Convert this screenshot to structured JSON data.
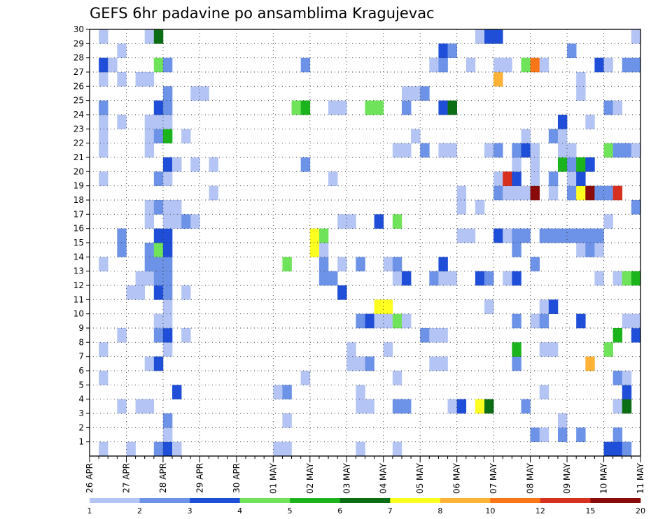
{
  "chart_data": {
    "type": "heatmap",
    "title": "GEFS 6hr padavine po ansamblima Kragujevac",
    "xlabel": "",
    "ylabel": "",
    "x_tick_labels": [
      "26 APR",
      "27 APR",
      "28 APR",
      "29 APR",
      "30 APR",
      "01 MAY",
      "02 MAY",
      "03 MAY",
      "04 MAY",
      "05 MAY",
      "06 MAY",
      "07 MAY",
      "08 MAY",
      "09 MAY",
      "10 MAY",
      "11 MAY"
    ],
    "y_tick_labels": [
      "1",
      "2",
      "3",
      "4",
      "5",
      "6",
      "7",
      "8",
      "9",
      "10",
      "11",
      "12",
      "13",
      "14",
      "15",
      "16",
      "17",
      "18",
      "19",
      "20",
      "21",
      "22",
      "23",
      "24",
      "25",
      "26",
      "27",
      "28",
      "29",
      "30"
    ],
    "steps_per_day": 4,
    "x_steps": 60,
    "members": 30,
    "grid": true,
    "colorbar": {
      "position": "bottom",
      "labels": [
        "1",
        "2",
        "3",
        "4",
        "5",
        "6",
        "7",
        "8",
        "10",
        "12",
        "15",
        "20"
      ],
      "colors": [
        "#b4c5f5",
        "#6d93e8",
        "#1f4fd8",
        "#6fe35a",
        "#1cb41c",
        "#0b6e14",
        "#ffff20",
        "#ffb336",
        "#fa7418",
        "#d8301e",
        "#8a0a0a"
      ]
    },
    "cells": [
      [
        1,
        1,
        0
      ],
      [
        1,
        4,
        0
      ],
      [
        1,
        7,
        1
      ],
      [
        1,
        8,
        2
      ],
      [
        1,
        9,
        0
      ],
      [
        1,
        20,
        0
      ],
      [
        1,
        21,
        0
      ],
      [
        1,
        29,
        0
      ],
      [
        1,
        33,
        0
      ],
      [
        1,
        56,
        2
      ],
      [
        1,
        57,
        2
      ],
      [
        1,
        58,
        1
      ],
      [
        2,
        8,
        0
      ],
      [
        2,
        48,
        1
      ],
      [
        2,
        49,
        0
      ],
      [
        2,
        51,
        1
      ],
      [
        2,
        53,
        1
      ],
      [
        2,
        57,
        1
      ],
      [
        3,
        8,
        1
      ],
      [
        3,
        21,
        0
      ],
      [
        3,
        51,
        0
      ],
      [
        4,
        3,
        0
      ],
      [
        4,
        5,
        0
      ],
      [
        4,
        6,
        0
      ],
      [
        4,
        29,
        0
      ],
      [
        4,
        30,
        0
      ],
      [
        4,
        33,
        1
      ],
      [
        4,
        34,
        1
      ],
      [
        4,
        39,
        0
      ],
      [
        4,
        40,
        2
      ],
      [
        4,
        42,
        6
      ],
      [
        4,
        43,
        5
      ],
      [
        4,
        47,
        1
      ],
      [
        4,
        57,
        0
      ],
      [
        4,
        58,
        5
      ],
      [
        5,
        9,
        2
      ],
      [
        5,
        20,
        0
      ],
      [
        5,
        21,
        1
      ],
      [
        5,
        29,
        0
      ],
      [
        5,
        49,
        0
      ],
      [
        5,
        58,
        2
      ],
      [
        6,
        1,
        0
      ],
      [
        6,
        23,
        0
      ],
      [
        6,
        33,
        0
      ],
      [
        6,
        57,
        1
      ],
      [
        6,
        58,
        0
      ],
      [
        7,
        6,
        0
      ],
      [
        7,
        7,
        2
      ],
      [
        7,
        28,
        0
      ],
      [
        7,
        29,
        0
      ],
      [
        7,
        30,
        1
      ],
      [
        7,
        37,
        0
      ],
      [
        7,
        38,
        0
      ],
      [
        7,
        46,
        1
      ],
      [
        7,
        54,
        7
      ],
      [
        8,
        1,
        0
      ],
      [
        8,
        8,
        0
      ],
      [
        8,
        28,
        0
      ],
      [
        8,
        32,
        0
      ],
      [
        8,
        46,
        4
      ],
      [
        8,
        49,
        0
      ],
      [
        8,
        50,
        0
      ],
      [
        8,
        56,
        3
      ],
      [
        9,
        3,
        0
      ],
      [
        9,
        7,
        1
      ],
      [
        9,
        8,
        2
      ],
      [
        9,
        10,
        0
      ],
      [
        9,
        36,
        1
      ],
      [
        9,
        37,
        0
      ],
      [
        9,
        38,
        0
      ],
      [
        9,
        57,
        4
      ],
      [
        9,
        59,
        2
      ],
      [
        10,
        7,
        0
      ],
      [
        10,
        8,
        0
      ],
      [
        10,
        29,
        1
      ],
      [
        10,
        30,
        2
      ],
      [
        10,
        31,
        0
      ],
      [
        10,
        32,
        0
      ],
      [
        10,
        33,
        3
      ],
      [
        10,
        34,
        0
      ],
      [
        10,
        46,
        1
      ],
      [
        10,
        48,
        0
      ],
      [
        10,
        49,
        1
      ],
      [
        10,
        53,
        2
      ],
      [
        10,
        58,
        0
      ],
      [
        10,
        59,
        0
      ],
      [
        11,
        8,
        0
      ],
      [
        11,
        31,
        6
      ],
      [
        11,
        32,
        6
      ],
      [
        11,
        43,
        0
      ],
      [
        11,
        49,
        0
      ],
      [
        11,
        50,
        2
      ],
      [
        12,
        4,
        0
      ],
      [
        12,
        5,
        0
      ],
      [
        12,
        7,
        2
      ],
      [
        12,
        8,
        1
      ],
      [
        12,
        10,
        0
      ],
      [
        12,
        27,
        2
      ],
      [
        13,
        5,
        0
      ],
      [
        13,
        6,
        0
      ],
      [
        13,
        7,
        1
      ],
      [
        13,
        8,
        1
      ],
      [
        13,
        25,
        1
      ],
      [
        13,
        26,
        1
      ],
      [
        13,
        33,
        0
      ],
      [
        13,
        34,
        2
      ],
      [
        13,
        37,
        1
      ],
      [
        13,
        38,
        0
      ],
      [
        13,
        39,
        0
      ],
      [
        13,
        42,
        2
      ],
      [
        13,
        43,
        1
      ],
      [
        13,
        45,
        0
      ],
      [
        13,
        46,
        2
      ],
      [
        13,
        55,
        0
      ],
      [
        13,
        57,
        0
      ],
      [
        13,
        58,
        3
      ],
      [
        13,
        59,
        4
      ],
      [
        14,
        1,
        0
      ],
      [
        14,
        6,
        1
      ],
      [
        14,
        7,
        1
      ],
      [
        14,
        8,
        1
      ],
      [
        14,
        21,
        3
      ],
      [
        14,
        25,
        1
      ],
      [
        14,
        27,
        0
      ],
      [
        14,
        29,
        1
      ],
      [
        14,
        32,
        0
      ],
      [
        14,
        33,
        1
      ],
      [
        14,
        38,
        2
      ],
      [
        14,
        48,
        1
      ],
      [
        15,
        3,
        1
      ],
      [
        15,
        6,
        1
      ],
      [
        15,
        7,
        3
      ],
      [
        15,
        8,
        2
      ],
      [
        15,
        24,
        6
      ],
      [
        15,
        25,
        0
      ],
      [
        15,
        46,
        1
      ],
      [
        15,
        53,
        0
      ],
      [
        15,
        54,
        1
      ],
      [
        15,
        55,
        0
      ],
      [
        16,
        3,
        1
      ],
      [
        16,
        7,
        2
      ],
      [
        16,
        8,
        2
      ],
      [
        16,
        24,
        6
      ],
      [
        16,
        25,
        3
      ],
      [
        16,
        40,
        0
      ],
      [
        16,
        41,
        0
      ],
      [
        16,
        44,
        2
      ],
      [
        16,
        45,
        0
      ],
      [
        16,
        46,
        1
      ],
      [
        16,
        47,
        1
      ],
      [
        16,
        49,
        1
      ],
      [
        16,
        50,
        1
      ],
      [
        16,
        51,
        1
      ],
      [
        16,
        52,
        1
      ],
      [
        16,
        53,
        1
      ],
      [
        16,
        54,
        1
      ],
      [
        16,
        55,
        1
      ],
      [
        17,
        6,
        0
      ],
      [
        17,
        8,
        0
      ],
      [
        17,
        9,
        0
      ],
      [
        17,
        10,
        1
      ],
      [
        17,
        11,
        0
      ],
      [
        17,
        27,
        0
      ],
      [
        17,
        28,
        0
      ],
      [
        17,
        31,
        2
      ],
      [
        17,
        33,
        3
      ],
      [
        17,
        56,
        0
      ],
      [
        18,
        6,
        0
      ],
      [
        18,
        7,
        1
      ],
      [
        18,
        8,
        0
      ],
      [
        18,
        9,
        0
      ],
      [
        18,
        40,
        0
      ],
      [
        18,
        42,
        0
      ],
      [
        18,
        59,
        1
      ],
      [
        19,
        13,
        0
      ],
      [
        19,
        40,
        0
      ],
      [
        19,
        44,
        1
      ],
      [
        19,
        45,
        0
      ],
      [
        19,
        46,
        0
      ],
      [
        19,
        47,
        0
      ],
      [
        19,
        48,
        10
      ],
      [
        19,
        50,
        0
      ],
      [
        19,
        52,
        1
      ],
      [
        19,
        53,
        6
      ],
      [
        19,
        54,
        10
      ],
      [
        19,
        55,
        1
      ],
      [
        19,
        56,
        1
      ],
      [
        19,
        57,
        9
      ],
      [
        20,
        1,
        0
      ],
      [
        20,
        7,
        1
      ],
      [
        20,
        8,
        0
      ],
      [
        20,
        26,
        0
      ],
      [
        20,
        44,
        0
      ],
      [
        20,
        45,
        9
      ],
      [
        20,
        46,
        2
      ],
      [
        20,
        48,
        0
      ],
      [
        20,
        50,
        1
      ],
      [
        20,
        52,
        0
      ],
      [
        20,
        53,
        2
      ],
      [
        21,
        8,
        2
      ],
      [
        21,
        9,
        0
      ],
      [
        21,
        11,
        0
      ],
      [
        21,
        13,
        0
      ],
      [
        21,
        23,
        1
      ],
      [
        21,
        46,
        0
      ],
      [
        21,
        48,
        0
      ],
      [
        21,
        51,
        4
      ],
      [
        21,
        52,
        1
      ],
      [
        21,
        53,
        4
      ],
      [
        21,
        54,
        2
      ],
      [
        22,
        1,
        0
      ],
      [
        22,
        6,
        0
      ],
      [
        22,
        33,
        0
      ],
      [
        22,
        34,
        0
      ],
      [
        22,
        36,
        1
      ],
      [
        22,
        38,
        0
      ],
      [
        22,
        39,
        0
      ],
      [
        22,
        43,
        0
      ],
      [
        22,
        44,
        1
      ],
      [
        22,
        46,
        1
      ],
      [
        22,
        47,
        2
      ],
      [
        22,
        48,
        0
      ],
      [
        22,
        51,
        0
      ],
      [
        22,
        52,
        0
      ],
      [
        22,
        56,
        3
      ],
      [
        22,
        57,
        1
      ],
      [
        22,
        58,
        1
      ],
      [
        22,
        59,
        0
      ],
      [
        23,
        1,
        0
      ],
      [
        23,
        6,
        0
      ],
      [
        23,
        7,
        1
      ],
      [
        23,
        8,
        4
      ],
      [
        23,
        10,
        0
      ],
      [
        23,
        35,
        0
      ],
      [
        23,
        47,
        0
      ],
      [
        23,
        50,
        1
      ],
      [
        23,
        51,
        0
      ],
      [
        24,
        1,
        0
      ],
      [
        24,
        3,
        0
      ],
      [
        24,
        6,
        0
      ],
      [
        24,
        7,
        0
      ],
      [
        24,
        8,
        0
      ],
      [
        24,
        51,
        2
      ],
      [
        24,
        54,
        0
      ],
      [
        25,
        1,
        1
      ],
      [
        25,
        7,
        2
      ],
      [
        25,
        8,
        1
      ],
      [
        25,
        22,
        3
      ],
      [
        25,
        23,
        4
      ],
      [
        25,
        26,
        0
      ],
      [
        25,
        27,
        0
      ],
      [
        25,
        30,
        3
      ],
      [
        25,
        31,
        3
      ],
      [
        25,
        34,
        1
      ],
      [
        25,
        38,
        2
      ],
      [
        25,
        39,
        5
      ],
      [
        25,
        56,
        1
      ],
      [
        25,
        57,
        0
      ],
      [
        26,
        8,
        1
      ],
      [
        26,
        11,
        0
      ],
      [
        26,
        12,
        0
      ],
      [
        26,
        34,
        0
      ],
      [
        26,
        35,
        0
      ],
      [
        26,
        36,
        1
      ],
      [
        26,
        53,
        0
      ],
      [
        27,
        1,
        0
      ],
      [
        27,
        3,
        0
      ],
      [
        27,
        5,
        0
      ],
      [
        27,
        6,
        0
      ],
      [
        27,
        44,
        7
      ],
      [
        27,
        53,
        0
      ],
      [
        28,
        1,
        2
      ],
      [
        28,
        2,
        0
      ],
      [
        28,
        7,
        3
      ],
      [
        28,
        8,
        1
      ],
      [
        28,
        23,
        1
      ],
      [
        28,
        37,
        0
      ],
      [
        28,
        38,
        1
      ],
      [
        28,
        41,
        0
      ],
      [
        28,
        44,
        0
      ],
      [
        28,
        45,
        0
      ],
      [
        28,
        47,
        3
      ],
      [
        28,
        48,
        8
      ],
      [
        28,
        49,
        0
      ],
      [
        28,
        55,
        2
      ],
      [
        28,
        56,
        0
      ],
      [
        28,
        58,
        1
      ],
      [
        28,
        59,
        1
      ],
      [
        29,
        3,
        0
      ],
      [
        29,
        38,
        2
      ],
      [
        29,
        39,
        1
      ],
      [
        29,
        52,
        1
      ],
      [
        30,
        1,
        0
      ],
      [
        30,
        6,
        0
      ],
      [
        30,
        7,
        5
      ],
      [
        30,
        42,
        0
      ],
      [
        30,
        43,
        2
      ],
      [
        30,
        44,
        2
      ],
      [
        30,
        59,
        0
      ]
    ]
  }
}
